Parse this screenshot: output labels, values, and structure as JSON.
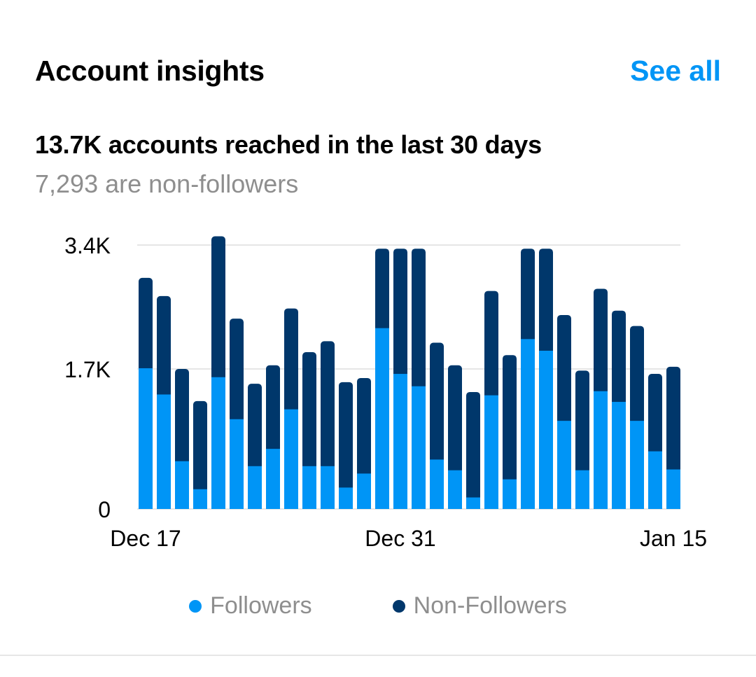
{
  "header": {
    "title": "Account insights",
    "see_all_label": "See all"
  },
  "summary": {
    "headline": "13.7K accounts reached in the last 30 days",
    "subline": "7,293 are non-followers"
  },
  "colors": {
    "followers": "#0095F6",
    "non_followers": "#00376B",
    "accent": "#0095F6"
  },
  "legend": [
    {
      "label": "Followers",
      "series": "followers"
    },
    {
      "label": "Non-Followers",
      "series": "non_followers"
    }
  ],
  "chart_data": {
    "type": "bar",
    "stacked": true,
    "title": "",
    "xlabel": "",
    "ylabel": "",
    "ylim": [
      0,
      3400
    ],
    "y_ticks": [
      {
        "value": 0,
        "label": "0"
      },
      {
        "value": 1700,
        "label": "1.7K"
      },
      {
        "value": 3400,
        "label": "3.4K"
      }
    ],
    "x_tick_labels": [
      {
        "index": 0,
        "label": "Dec 17"
      },
      {
        "index": 14,
        "label": "Dec 31"
      },
      {
        "index": 29,
        "label": "Jan 15"
      }
    ],
    "grid": true,
    "legend_position": "bottom",
    "value_note": "Per-bar values are estimates read against the drawn gridlines (not printed labels); rounded to ~10. Gridlines are unevenly spaced, so values were interpolated piecewise between ticks.",
    "categories": [
      "Dec 17",
      "Dec 18",
      "Dec 19",
      "Dec 20",
      "Dec 21",
      "Dec 22",
      "Dec 23",
      "Dec 24",
      "Dec 25",
      "Dec 26",
      "Dec 27",
      "Dec 28",
      "Dec 29",
      "Dec 30",
      "Dec 31",
      "Jan 1",
      "Jan 2",
      "Jan 3",
      "Jan 4",
      "Jan 5",
      "Jan 6",
      "Jan 7",
      "Jan 8",
      "Jan 9",
      "Jan 10",
      "Jan 11",
      "Jan 12",
      "Jan 13",
      "Jan 14",
      "Jan 15"
    ],
    "series": [
      {
        "name": "Followers",
        "key": "followers",
        "values": [
          1710,
          1390,
          580,
          240,
          1600,
          1090,
          520,
          730,
          1210,
          520,
          520,
          260,
          430,
          2260,
          1640,
          1490,
          600,
          470,
          140,
          1380,
          360,
          2110,
          1950,
          1070,
          470,
          1430,
          1300,
          1070,
          700,
          480
        ]
      },
      {
        "name": "Non-Followers",
        "key": "non_followers",
        "values": [
          1240,
          1310,
          1120,
          1070,
          1920,
          1300,
          1000,
          1020,
          1320,
          1410,
          1560,
          1280,
          1160,
          1090,
          1710,
          1860,
          1460,
          1280,
          1280,
          1390,
          1530,
          1240,
          1400,
          1370,
          1210,
          1370,
          1200,
          1220,
          940,
          1250
        ]
      }
    ]
  }
}
